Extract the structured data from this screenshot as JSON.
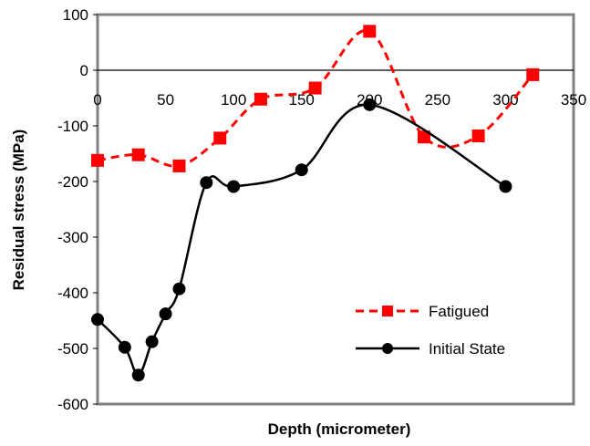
{
  "chart_data": {
    "type": "line",
    "title": "",
    "xlabel": "Depth (micrometer)",
    "ylabel": "Residual stress (MPa)",
    "xlim": [
      0,
      350
    ],
    "ylim": [
      -600,
      100
    ],
    "xticks": [
      "0",
      "50",
      "100",
      "150",
      "200",
      "250",
      "300",
      "350"
    ],
    "yticks": [
      "100",
      "0",
      "-100",
      "-200",
      "-300",
      "-400",
      "-500",
      "-600"
    ],
    "grid": false,
    "legend_position": "bottom-right",
    "series": [
      {
        "name": "Fatigued",
        "color": "#ff0000",
        "line_style": "dashed",
        "marker": "square",
        "x": [
          0,
          30,
          60,
          90,
          120,
          160,
          200,
          240,
          280,
          320
        ],
        "y": [
          -162,
          -152,
          -172,
          -122,
          -52,
          -32,
          70,
          -120,
          -118,
          -8
        ]
      },
      {
        "name": "Initial State",
        "color": "#000000",
        "line_style": "solid",
        "marker": "circle",
        "x": [
          0,
          20,
          30,
          40,
          50,
          60,
          80,
          100,
          150,
          200,
          300
        ],
        "y": [
          -448,
          -498,
          -548,
          -488,
          -438,
          -393,
          -202,
          -209,
          -179,
          -62,
          -209
        ]
      }
    ]
  }
}
